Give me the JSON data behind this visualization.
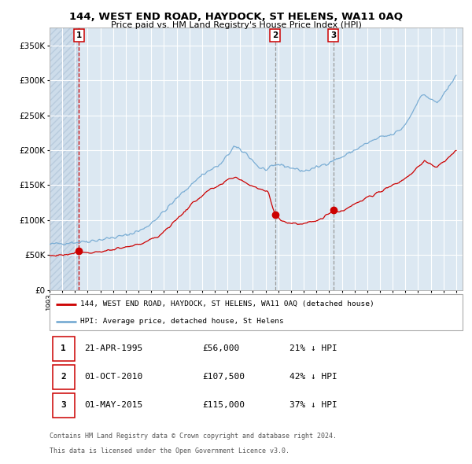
{
  "title_line1": "144, WEST END ROAD, HAYDOCK, ST HELENS, WA11 0AQ",
  "title_line2": "Price paid vs. HM Land Registry's House Price Index (HPI)",
  "legend_property": "144, WEST END ROAD, HAYDOCK, ST HELENS, WA11 0AQ (detached house)",
  "legend_hpi": "HPI: Average price, detached house, St Helens",
  "footer_line1": "Contains HM Land Registry data © Crown copyright and database right 2024.",
  "footer_line2": "This data is licensed under the Open Government Licence v3.0.",
  "table_entries": [
    {
      "num": "1",
      "date": "21-APR-1995",
      "price": "£56,000",
      "pct": "21% ↓ HPI"
    },
    {
      "num": "2",
      "date": "01-OCT-2010",
      "price": "£107,500",
      "pct": "42% ↓ HPI"
    },
    {
      "num": "3",
      "date": "01-MAY-2015",
      "price": "£115,000",
      "pct": "37% ↓ HPI"
    }
  ],
  "sale_times": [
    1995.3,
    2010.75,
    2015.33
  ],
  "sale_prices": [
    56000,
    107500,
    115000
  ],
  "property_color": "#cc0000",
  "hpi_color": "#7aadd4",
  "bg_chart": "#dce8f2",
  "ylim": [
    0,
    375000
  ],
  "yticks": [
    0,
    50000,
    100000,
    150000,
    200000,
    250000,
    300000,
    350000
  ],
  "xlim_start": 1993.0,
  "xlim_end": 2025.5
}
